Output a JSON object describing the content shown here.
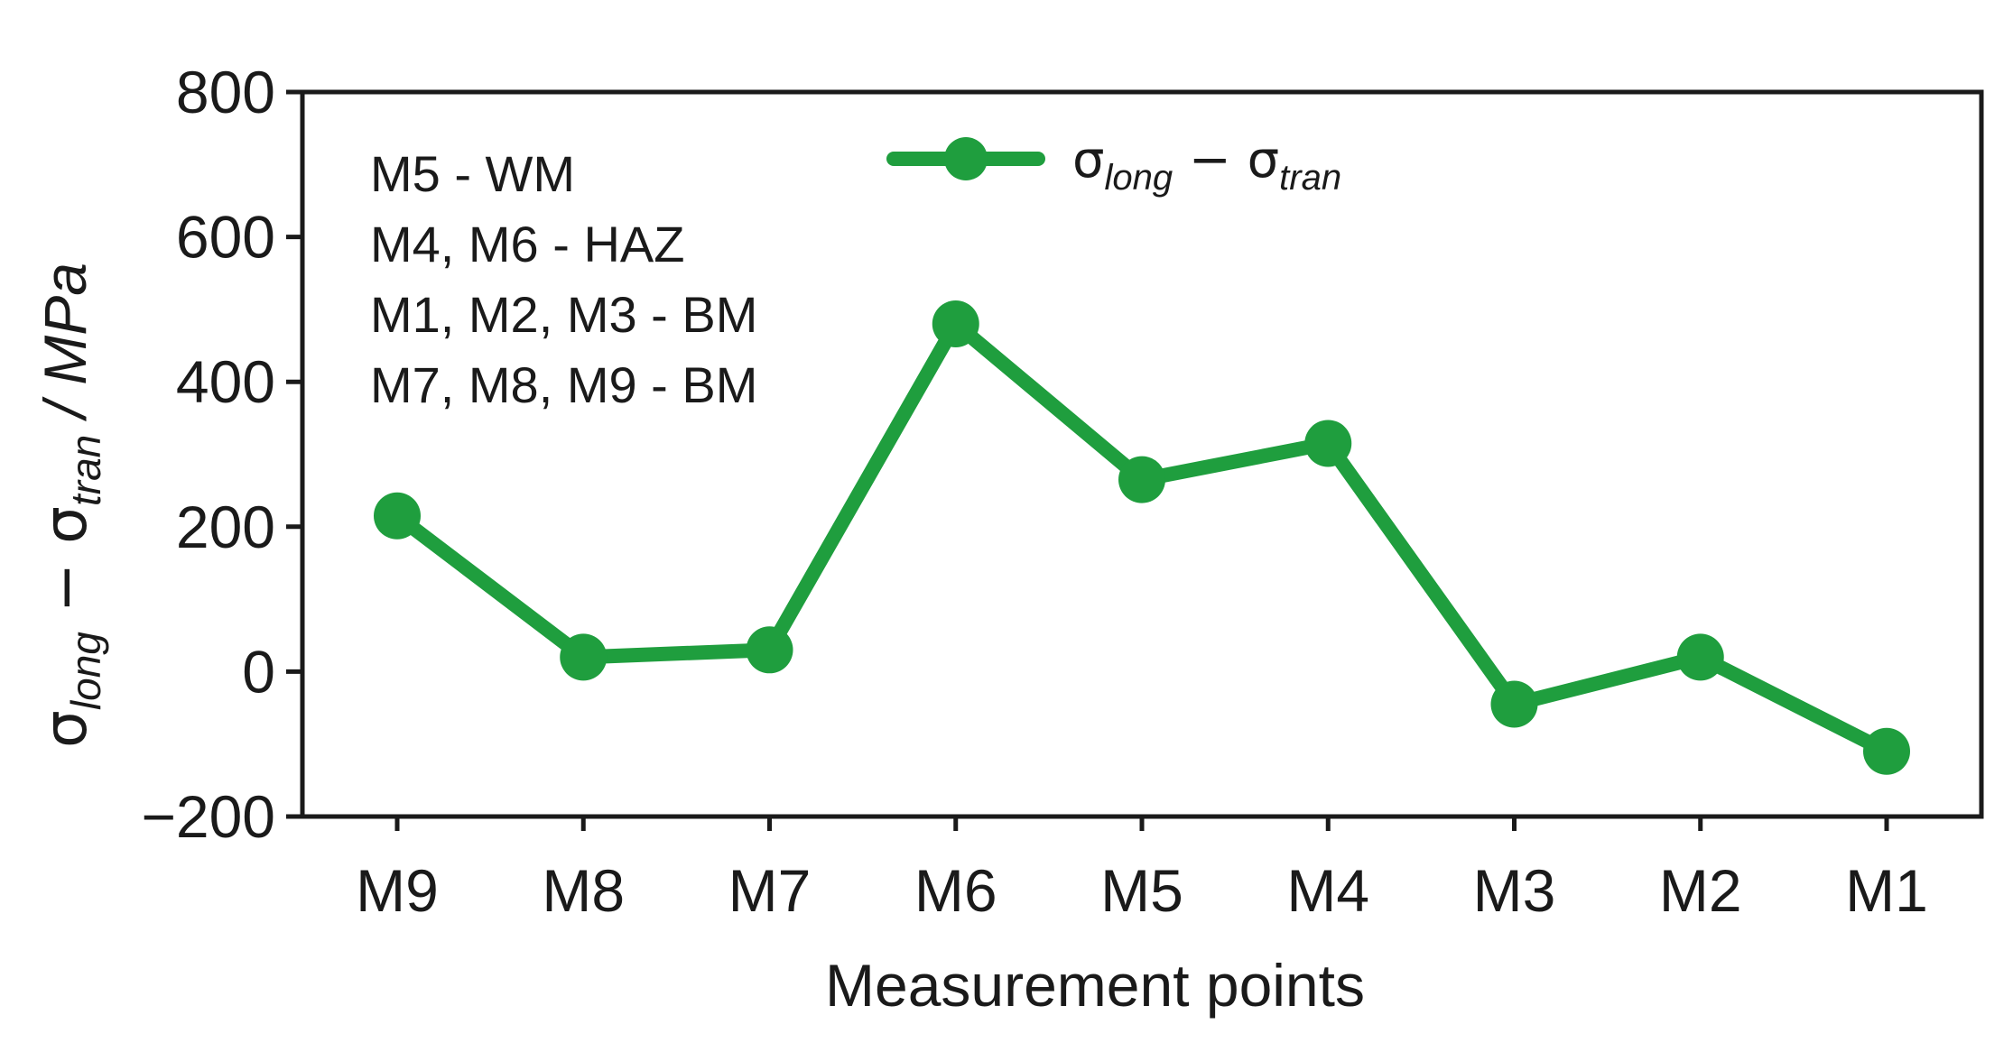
{
  "chart_data": {
    "type": "line",
    "categories": [
      "M9",
      "M8",
      "M7",
      "M6",
      "M5",
      "M4",
      "M3",
      "M2",
      "M1"
    ],
    "series": [
      {
        "name": "σlong − σtran",
        "name_parts": {
          "sym1": "σ",
          "sub1": "long",
          "op": " − ",
          "sym2": "σ",
          "sub2": "tran"
        },
        "values": [
          215,
          20,
          30,
          480,
          265,
          315,
          -45,
          20,
          -110
        ],
        "color": "#1f9e3e"
      }
    ],
    "xlabel": "Measurement points",
    "ylabel": "σlong − σtran / MPa",
    "ylabel_parts": {
      "sym1": "σ",
      "sub1": "long",
      "op": " − ",
      "sym2": "σ",
      "sub2": "tran",
      "unit": " / MPa"
    },
    "ylim": [
      -200,
      800
    ],
    "yticks": [
      -200,
      0,
      200,
      400,
      600,
      800
    ],
    "ytick_labels": [
      "−200",
      "0",
      "200",
      "400",
      "600",
      "800"
    ],
    "grid": false,
    "legend_position": "top-center",
    "annotations": [
      "M5 - WM",
      "M4, M6 - HAZ",
      "M1, M2, M3 - BM",
      "M7, M8, M9 - BM"
    ]
  }
}
